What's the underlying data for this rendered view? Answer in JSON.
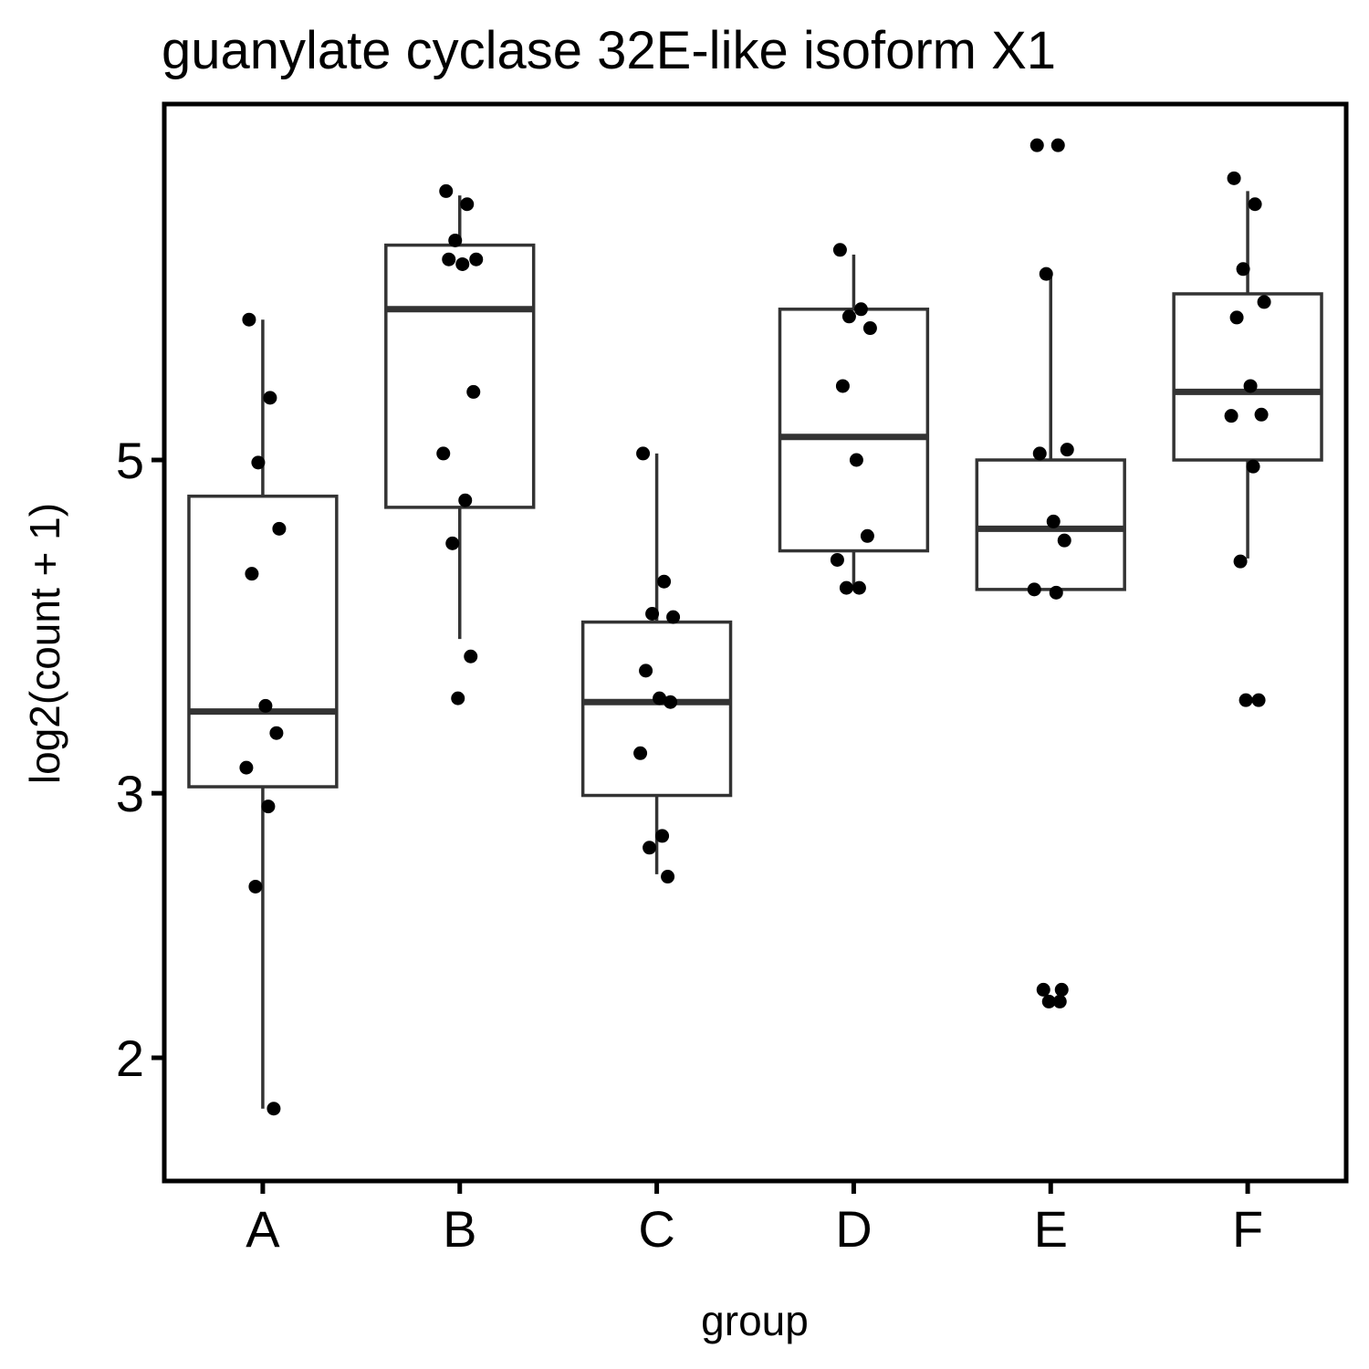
{
  "chart_data": {
    "type": "boxplot",
    "title": "guanylate cyclase 32E-like isoform X1",
    "xlabel": "group",
    "ylabel": "log2(count + 1)",
    "y_scale": "log",
    "ylim": [
      1.8,
      8.2
    ],
    "y_ticks": [
      2,
      3,
      5
    ],
    "y_tick_labels": [
      "2",
      "3",
      "5"
    ],
    "categories": [
      "A",
      "B",
      "C",
      "D",
      "E",
      "F"
    ],
    "grid": false,
    "legend": "none",
    "colors": {
      "box_stroke": "#333333",
      "point": "#000000",
      "frame": "#000000"
    },
    "boxes": [
      {
        "group": "A",
        "whisker_low": 1.85,
        "q1": 3.03,
        "median": 3.4,
        "q3": 4.73,
        "whisker_high": 6.2
      },
      {
        "group": "B",
        "whisker_low": 3.8,
        "q1": 4.65,
        "median": 6.3,
        "q3": 6.95,
        "whisker_high": 7.5
      },
      {
        "group": "C",
        "whisker_low": 2.65,
        "q1": 2.99,
        "median": 3.45,
        "q3": 3.9,
        "whisker_high": 5.05
      },
      {
        "group": "D",
        "whisker_low": 4.1,
        "q1": 4.35,
        "median": 5.18,
        "q3": 6.3,
        "whisker_high": 6.85
      },
      {
        "group": "E",
        "whisker_low": 4.1,
        "q1": 4.1,
        "median": 4.5,
        "q3": 5.0,
        "whisker_high": 6.65
      },
      {
        "group": "F",
        "whisker_low": 4.3,
        "q1": 5.0,
        "median": 5.55,
        "q3": 6.45,
        "whisker_high": 7.55
      }
    ],
    "points": [
      {
        "group": "A",
        "values": [
          6.2,
          5.5,
          4.98,
          4.5,
          4.2,
          3.43,
          3.29,
          3.12,
          2.94,
          2.6,
          1.85
        ]
      },
      {
        "group": "B",
        "values": [
          7.55,
          7.4,
          7.0,
          6.8,
          6.8,
          6.75,
          5.55,
          5.05,
          4.7,
          4.4,
          3.7,
          3.47
        ]
      },
      {
        "group": "C",
        "values": [
          5.05,
          4.15,
          3.95,
          3.93,
          3.62,
          3.47,
          3.45,
          3.19,
          2.81,
          2.76,
          2.64
        ]
      },
      {
        "group": "D",
        "values": [
          6.9,
          6.3,
          6.23,
          6.12,
          5.6,
          5.0,
          4.45,
          4.29,
          4.11,
          4.11
        ]
      },
      {
        "group": "E",
        "values": [
          8.1,
          8.1,
          6.65,
          5.08,
          5.05,
          4.55,
          4.42,
          4.1,
          4.08,
          2.22,
          2.22,
          2.18,
          2.18
        ]
      },
      {
        "group": "F",
        "values": [
          7.7,
          7.4,
          6.7,
          6.37,
          6.22,
          5.6,
          5.36,
          5.35,
          4.95,
          4.28,
          3.46,
          3.46
        ]
      }
    ]
  }
}
